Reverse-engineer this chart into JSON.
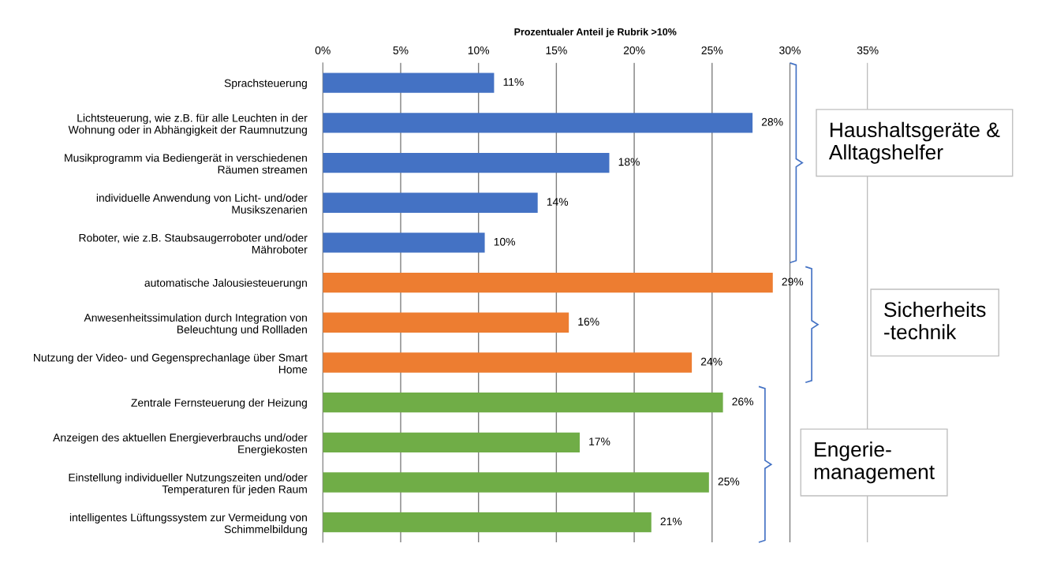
{
  "chart_data": {
    "type": "bar",
    "orientation": "horizontal",
    "xlabel": "Prozentualer Anteil je Rubrik >10%",
    "categories": [
      "Sprachsteuerung",
      "Lichtsteuerung, wie z.B. für alle Leuchten in der\nWohnung oder in Abhängigkeit der Raumnutzung",
      "Musikprogramm via Bediengerät in verschiedenen\nRäumen streamen",
      "individuelle Anwendung von Licht- und/oder\nMusikszenarien",
      "Roboter, wie z.B. Staubsaugerroboter und/oder\nMähroboter",
      "automatische Jalousiesteuerungn",
      "Anwesenheitssimulation durch Integration von\nBeleuchtung und Rollladen",
      "Nutzung der Video- und Gegensprechanlage über Smart\nHome",
      "Zentrale Fernsteuerung der Heizung",
      "Anzeigen des aktuellen Energieverbrauchs und/oder\nEnergiekosten",
      "Einstellung individueller Nutzungszeiten und/oder\nTemperaturen für jeden Raum",
      "intelligentes Lüftungssystem zur Vermeidung von\nSchimmelbildung"
    ],
    "values": [
      11.0,
      27.6,
      18.4,
      13.8,
      10.4,
      28.9,
      15.8,
      23.7,
      25.7,
      16.5,
      24.8,
      21.1
    ],
    "value_labels": [
      "11%",
      "28%",
      "18%",
      "14%",
      "10%",
      "29%",
      "16%",
      "24%",
      "26%",
      "17%",
      "25%",
      "21%"
    ],
    "colors": [
      "#4472c4",
      "#4472c4",
      "#4472c4",
      "#4472c4",
      "#4472c4",
      "#ed7d31",
      "#ed7d31",
      "#ed7d31",
      "#70ad47",
      "#70ad47",
      "#70ad47",
      "#70ad47"
    ],
    "xlim": [
      0,
      35
    ],
    "xticks": [
      {
        "value": 0,
        "label": "0%"
      },
      {
        "value": 5,
        "label": "5%"
      },
      {
        "value": 10,
        "label": "10%"
      },
      {
        "value": 15,
        "label": "15%"
      },
      {
        "value": 20,
        "label": "20%"
      },
      {
        "value": 25,
        "label": "25%"
      },
      {
        "value": 30,
        "label": "30%"
      },
      {
        "value": 35,
        "label": "35%"
      }
    ],
    "grid": "x",
    "annotations": [
      "Haushaltsgeräte &\nAlltagshelfer",
      "Sicherheits\n-technik",
      "Engerie-\nmanagement"
    ]
  }
}
